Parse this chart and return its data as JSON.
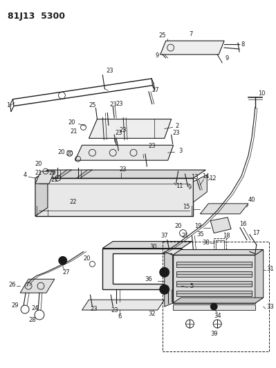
{
  "title": "81J13 5300",
  "bg_color": "#ffffff",
  "fg_color": "#1a1a1a",
  "lw_main": 1.0,
  "lw_thin": 0.5,
  "label_fs": 6.0
}
